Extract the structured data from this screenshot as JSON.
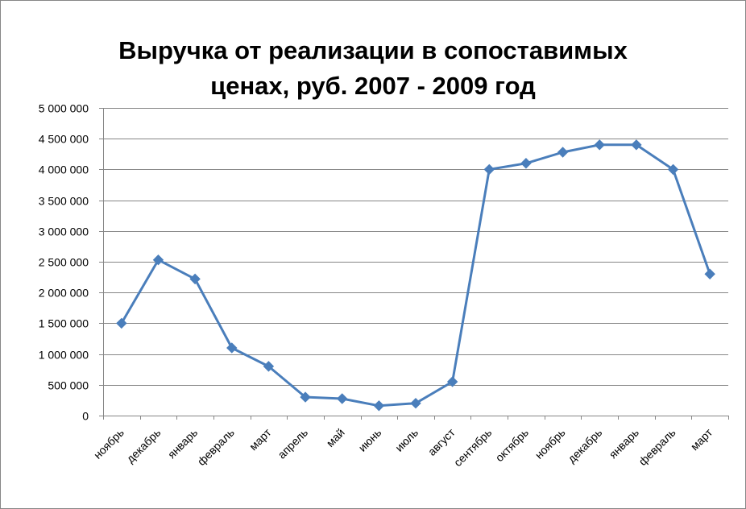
{
  "chart_data": {
    "type": "line",
    "title_lines": [
      "Выручка от реализации в сопоставимых",
      "ценах, руб. 2007 - 2009 год"
    ],
    "categories": [
      "ноябрь",
      "декабрь",
      "январь",
      "февраль",
      "март",
      "апрель",
      "май",
      "июнь",
      "июль",
      "август",
      "сентябрь",
      "октябрь",
      "ноябрь",
      "декабрь",
      "январь",
      "февраль",
      "март"
    ],
    "series": [
      {
        "values": [
          1500000,
          2530000,
          2220000,
          1100000,
          800000,
          300000,
          275000,
          160000,
          200000,
          550000,
          4000000,
          4100000,
          4280000,
          4400000,
          4400000,
          4000000,
          2300000
        ],
        "color": "#4a7ebb"
      }
    ],
    "y_ticks": [
      "0",
      "500 000",
      "1 000 000",
      "1 500 000",
      "2 000 000",
      "2 500 000",
      "3 000 000",
      "3 500 000",
      "4 000 000",
      "4 500 000",
      "5 000 000"
    ],
    "ylim": [
      0,
      5000000
    ],
    "grid": true,
    "legend": "none"
  }
}
